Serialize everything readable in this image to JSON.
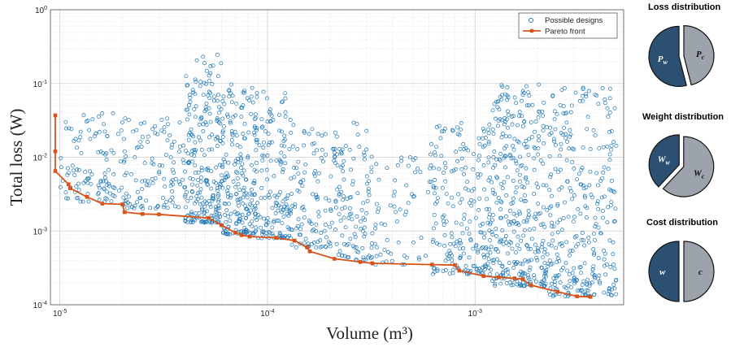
{
  "chart_data": [
    {
      "type": "scatter",
      "title": "",
      "xlabel": "Volume (m³)",
      "ylabel": "Total loss (W)",
      "xscale": "log",
      "yscale": "log",
      "xlim": [
        9e-06,
        0.0052
      ],
      "ylim": [
        0.0001,
        1
      ],
      "grid": true,
      "legend_position": "top-right",
      "x_ticks": [
        {
          "value": 1e-05,
          "base": "10",
          "exp": "-5"
        },
        {
          "value": 0.0001,
          "base": "10",
          "exp": "-4"
        },
        {
          "value": 0.001,
          "base": "10",
          "exp": "-3"
        }
      ],
      "y_ticks": [
        {
          "value": 0.0001,
          "base": "10",
          "exp": "-4"
        },
        {
          "value": 0.001,
          "base": "10",
          "exp": "-3"
        },
        {
          "value": 0.01,
          "base": "10",
          "exp": "-2"
        },
        {
          "value": 0.1,
          "base": "10",
          "exp": "-1"
        },
        {
          "value": 1,
          "base": "10",
          "exp": "0"
        }
      ],
      "series": [
        {
          "name": "Possible designs",
          "kind": "scatter",
          "color": "#1f77b4",
          "clusters": [
            {
              "x": [
                1e-05,
                2.1e-05
              ],
              "y": [
                0.0025,
                0.04
              ],
              "n": 110
            },
            {
              "x": [
                2e-05,
                4e-05
              ],
              "y": [
                0.002,
                0.035
              ],
              "n": 110
            },
            {
              "x": [
                4e-05,
                6e-05
              ],
              "y": [
                0.0013,
                0.25
              ],
              "n": 230
            },
            {
              "x": [
                6e-05,
                9e-05
              ],
              "y": [
                0.0009,
                0.1
              ],
              "n": 220
            },
            {
              "x": [
                9e-05,
                0.00013
              ],
              "y": [
                0.0008,
                0.08
              ],
              "n": 140
            },
            {
              "x": [
                0.00013,
                0.00022
              ],
              "y": [
                0.0006,
                0.03
              ],
              "n": 120
            },
            {
              "x": [
                0.00022,
                0.00032
              ],
              "y": [
                0.0004,
                0.03
              ],
              "n": 100
            },
            {
              "x": [
                0.00032,
                0.0006
              ],
              "y": [
                0.00035,
                0.01
              ],
              "n": 60
            },
            {
              "x": [
                0.0006,
                0.0012
              ],
              "y": [
                0.00026,
                0.03
              ],
              "n": 220
            },
            {
              "x": [
                0.0012,
                0.0022
              ],
              "y": [
                0.00018,
                0.1
              ],
              "n": 330
            },
            {
              "x": [
                0.0022,
                0.0048
              ],
              "y": [
                0.00013,
                0.09
              ],
              "n": 310
            }
          ]
        },
        {
          "name": "Pareto front",
          "kind": "line",
          "color": "#d95319",
          "x": [
            9.5e-06,
            9.5e-06,
            9.5e-06,
            1.1e-05,
            1.12e-05,
            1.35e-05,
            1.6e-05,
            2e-05,
            2.05e-05,
            2.5e-05,
            3e-05,
            5.2e-05,
            6e-05,
            7e-05,
            7.5e-05,
            8.2e-05,
            0.00011,
            0.000135,
            0.000155,
            0.00016,
            0.00021,
            0.00028,
            0.00032,
            0.00062,
            0.0008,
            0.00084,
            0.0011,
            0.0013,
            0.00155,
            0.0017,
            0.00185,
            0.0025,
            0.0031,
            0.0036
          ],
          "y": [
            0.037,
            0.012,
            0.0065,
            0.0043,
            0.0038,
            0.0029,
            0.00235,
            0.0023,
            0.0018,
            0.0017,
            0.00168,
            0.0015,
            0.0012,
            0.00095,
            0.00088,
            0.00084,
            0.00081,
            0.00074,
            0.0006,
            0.00053,
            0.00042,
            0.00038,
            0.000365,
            0.00035,
            0.000345,
            0.00029,
            0.000245,
            0.000235,
            0.000228,
            0.000222,
            0.000185,
            0.00015,
            0.00013,
            0.000128
          ]
        }
      ]
    },
    {
      "type": "pie",
      "title": "Loss distribution",
      "slices": [
        {
          "label_base": "P",
          "label_sub": "c",
          "value": 0.46,
          "color": "#9ca3ac"
        },
        {
          "label_base": "P",
          "label_sub": "w",
          "value": 0.54,
          "color": "#2c5072"
        }
      ]
    },
    {
      "type": "pie",
      "title": "Weight distribution",
      "slices": [
        {
          "label_base": "W",
          "label_sub": "c",
          "value": 0.62,
          "color": "#9ca3ac"
        },
        {
          "label_base": "W",
          "label_sub": "w",
          "value": 0.38,
          "color": "#2c5072"
        }
      ]
    },
    {
      "type": "pie",
      "title": "Cost distribution",
      "slices": [
        {
          "label_base": "c",
          "label_sub": "",
          "value": 0.5,
          "color": "#9ca3ac"
        },
        {
          "label_base": "w",
          "label_sub": "",
          "value": 0.5,
          "color": "#2c5072"
        }
      ]
    }
  ]
}
